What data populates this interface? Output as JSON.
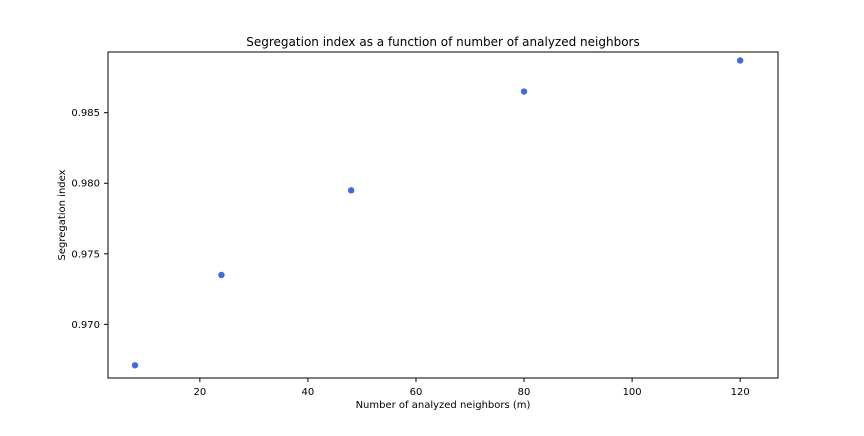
{
  "chart_data": {
    "type": "scatter",
    "title": "Segregation index as a function of number of analyzed neighbors",
    "xlabel": "Number of analyzed neighbors (m)",
    "ylabel": "Segregation index",
    "xlim": [
      3,
      127
    ],
    "ylim": [
      0.9662,
      0.9893
    ],
    "xticks": [
      20,
      40,
      60,
      80,
      100,
      120
    ],
    "yticks": [
      0.97,
      0.975,
      0.98,
      0.985
    ],
    "xtick_labels": [
      "20",
      "40",
      "60",
      "80",
      "100",
      "120"
    ],
    "ytick_labels": [
      "0.970",
      "0.975",
      "0.980",
      "0.985"
    ],
    "grid": false,
    "legend": false,
    "marker_color": "#4169e1",
    "points": [
      {
        "x": 8,
        "y": 0.9671
      },
      {
        "x": 24,
        "y": 0.9735
      },
      {
        "x": 48,
        "y": 0.9795
      },
      {
        "x": 80,
        "y": 0.9865
      },
      {
        "x": 120,
        "y": 0.9887
      }
    ]
  }
}
